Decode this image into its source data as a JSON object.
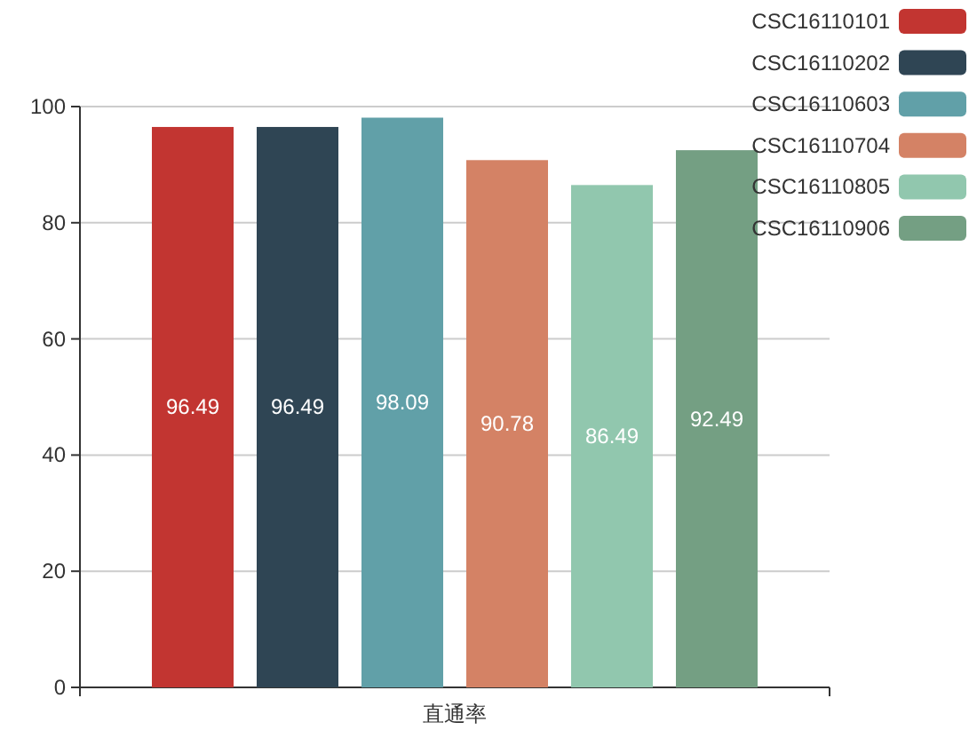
{
  "chart_data": {
    "type": "bar",
    "categories": [
      "直通率"
    ],
    "series": [
      {
        "name": "CSC16110101",
        "color": "#c23531",
        "values": [
          96.49
        ]
      },
      {
        "name": "CSC16110202",
        "color": "#2f4554",
        "values": [
          96.49
        ]
      },
      {
        "name": "CSC16110603",
        "color": "#61a0a8",
        "values": [
          98.09
        ]
      },
      {
        "name": "CSC16110704",
        "color": "#d48265",
        "values": [
          90.78
        ]
      },
      {
        "name": "CSC16110805",
        "color": "#91c7ae",
        "values": [
          86.49
        ]
      },
      {
        "name": "CSC16110906",
        "color": "#749f83",
        "values": [
          92.49
        ]
      }
    ],
    "ylim": [
      0,
      100
    ],
    "yticks": [
      0,
      20,
      40,
      60,
      80,
      100
    ],
    "grid": "y",
    "legend": "top right",
    "data_labels": true
  }
}
